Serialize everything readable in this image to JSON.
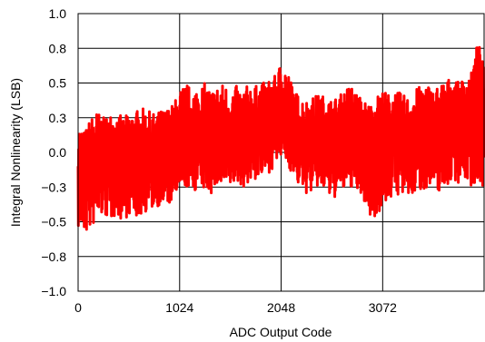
{
  "chart_data": {
    "type": "line",
    "title": "",
    "xlabel": "ADC Output Code",
    "ylabel": "Integral Nonlinearity (LSB)",
    "xlim": [
      0,
      4095
    ],
    "ylim": [
      -1.0,
      1.0
    ],
    "x_ticks": [
      0,
      1024,
      2048,
      3072
    ],
    "x_tick_labels": [
      "0",
      "1024",
      "2048",
      "3072"
    ],
    "y_ticks": [
      -1.0,
      -0.75,
      -0.5,
      -0.25,
      0.0,
      0.25,
      0.5,
      0.75,
      1.0
    ],
    "y_tick_labels": [
      "−1.0",
      "−0.8",
      "−0.5",
      "−0.3",
      "0.0",
      "0.3",
      "0.5",
      "0.8",
      "1.0"
    ],
    "grid": true,
    "line_color": "#ff0000",
    "series": [
      {
        "x": [
          0,
          64,
          128,
          192,
          256,
          320,
          384,
          448,
          512,
          576,
          640,
          704,
          768,
          832,
          896,
          960,
          1024,
          1088,
          1152,
          1216,
          1280,
          1344,
          1408,
          1472,
          1536,
          1600,
          1664,
          1728,
          1792,
          1856,
          1920,
          1984,
          2048,
          2112,
          2176,
          2240,
          2304,
          2368,
          2432,
          2496,
          2560,
          2624,
          2688,
          2752,
          2816,
          2880,
          2944,
          3008,
          3072,
          3136,
          3200,
          3264,
          3328,
          3392,
          3456,
          3520,
          3584,
          3648,
          3712,
          3776,
          3840,
          3904,
          3968,
          4032,
          4095
        ],
        "y": [
          -0.1,
          -0.15,
          -0.12,
          -0.08,
          -0.05,
          -0.1,
          -0.08,
          -0.12,
          -0.05,
          -0.1,
          -0.08,
          -0.05,
          -0.06,
          -0.02,
          -0.04,
          0.02,
          0.05,
          0.1,
          0.08,
          0.12,
          0.1,
          0.08,
          0.12,
          0.1,
          0.08,
          0.1,
          0.06,
          0.1,
          0.12,
          0.15,
          0.18,
          0.25,
          0.3,
          0.28,
          0.15,
          0.1,
          0.05,
          0.08,
          0.12,
          0.1,
          0.05,
          0.08,
          0.1,
          0.12,
          0.08,
          0.05,
          0.0,
          0.05,
          0.1,
          0.08,
          0.12,
          0.1,
          0.05,
          0.1,
          0.12,
          0.15,
          0.1,
          0.12,
          0.15,
          0.2,
          0.18,
          0.2,
          0.22,
          0.3,
          0.25
        ],
        "y_min": [
          -0.55,
          -0.6,
          -0.55,
          -0.5,
          -0.45,
          -0.5,
          -0.45,
          -0.5,
          -0.45,
          -0.48,
          -0.45,
          -0.42,
          -0.4,
          -0.38,
          -0.4,
          -0.35,
          -0.3,
          -0.25,
          -0.3,
          -0.25,
          -0.28,
          -0.3,
          -0.25,
          -0.28,
          -0.25,
          -0.22,
          -0.25,
          -0.22,
          -0.2,
          -0.18,
          -0.15,
          -0.1,
          -0.05,
          -0.08,
          -0.2,
          -0.25,
          -0.3,
          -0.28,
          -0.25,
          -0.3,
          -0.35,
          -0.3,
          -0.28,
          -0.25,
          -0.3,
          -0.35,
          -0.5,
          -0.45,
          -0.4,
          -0.35,
          -0.3,
          -0.32,
          -0.35,
          -0.3,
          -0.28,
          -0.25,
          -0.3,
          -0.28,
          -0.25,
          -0.2,
          -0.22,
          -0.2,
          -0.25,
          -0.22,
          -0.25
        ],
        "y_max": [
          0.2,
          0.15,
          0.25,
          0.3,
          0.25,
          0.28,
          0.3,
          0.25,
          0.28,
          0.3,
          0.32,
          0.3,
          0.28,
          0.3,
          0.32,
          0.35,
          0.45,
          0.5,
          0.45,
          0.48,
          0.5,
          0.45,
          0.48,
          0.5,
          0.45,
          0.48,
          0.45,
          0.5,
          0.48,
          0.5,
          0.52,
          0.55,
          0.65,
          0.6,
          0.45,
          0.4,
          0.38,
          0.4,
          0.42,
          0.4,
          0.38,
          0.4,
          0.45,
          0.5,
          0.42,
          0.38,
          0.35,
          0.4,
          0.45,
          0.42,
          0.45,
          0.42,
          0.4,
          0.45,
          0.48,
          0.5,
          0.45,
          0.5,
          0.52,
          0.55,
          0.5,
          0.55,
          0.58,
          0.82,
          0.6
        ]
      }
    ]
  }
}
